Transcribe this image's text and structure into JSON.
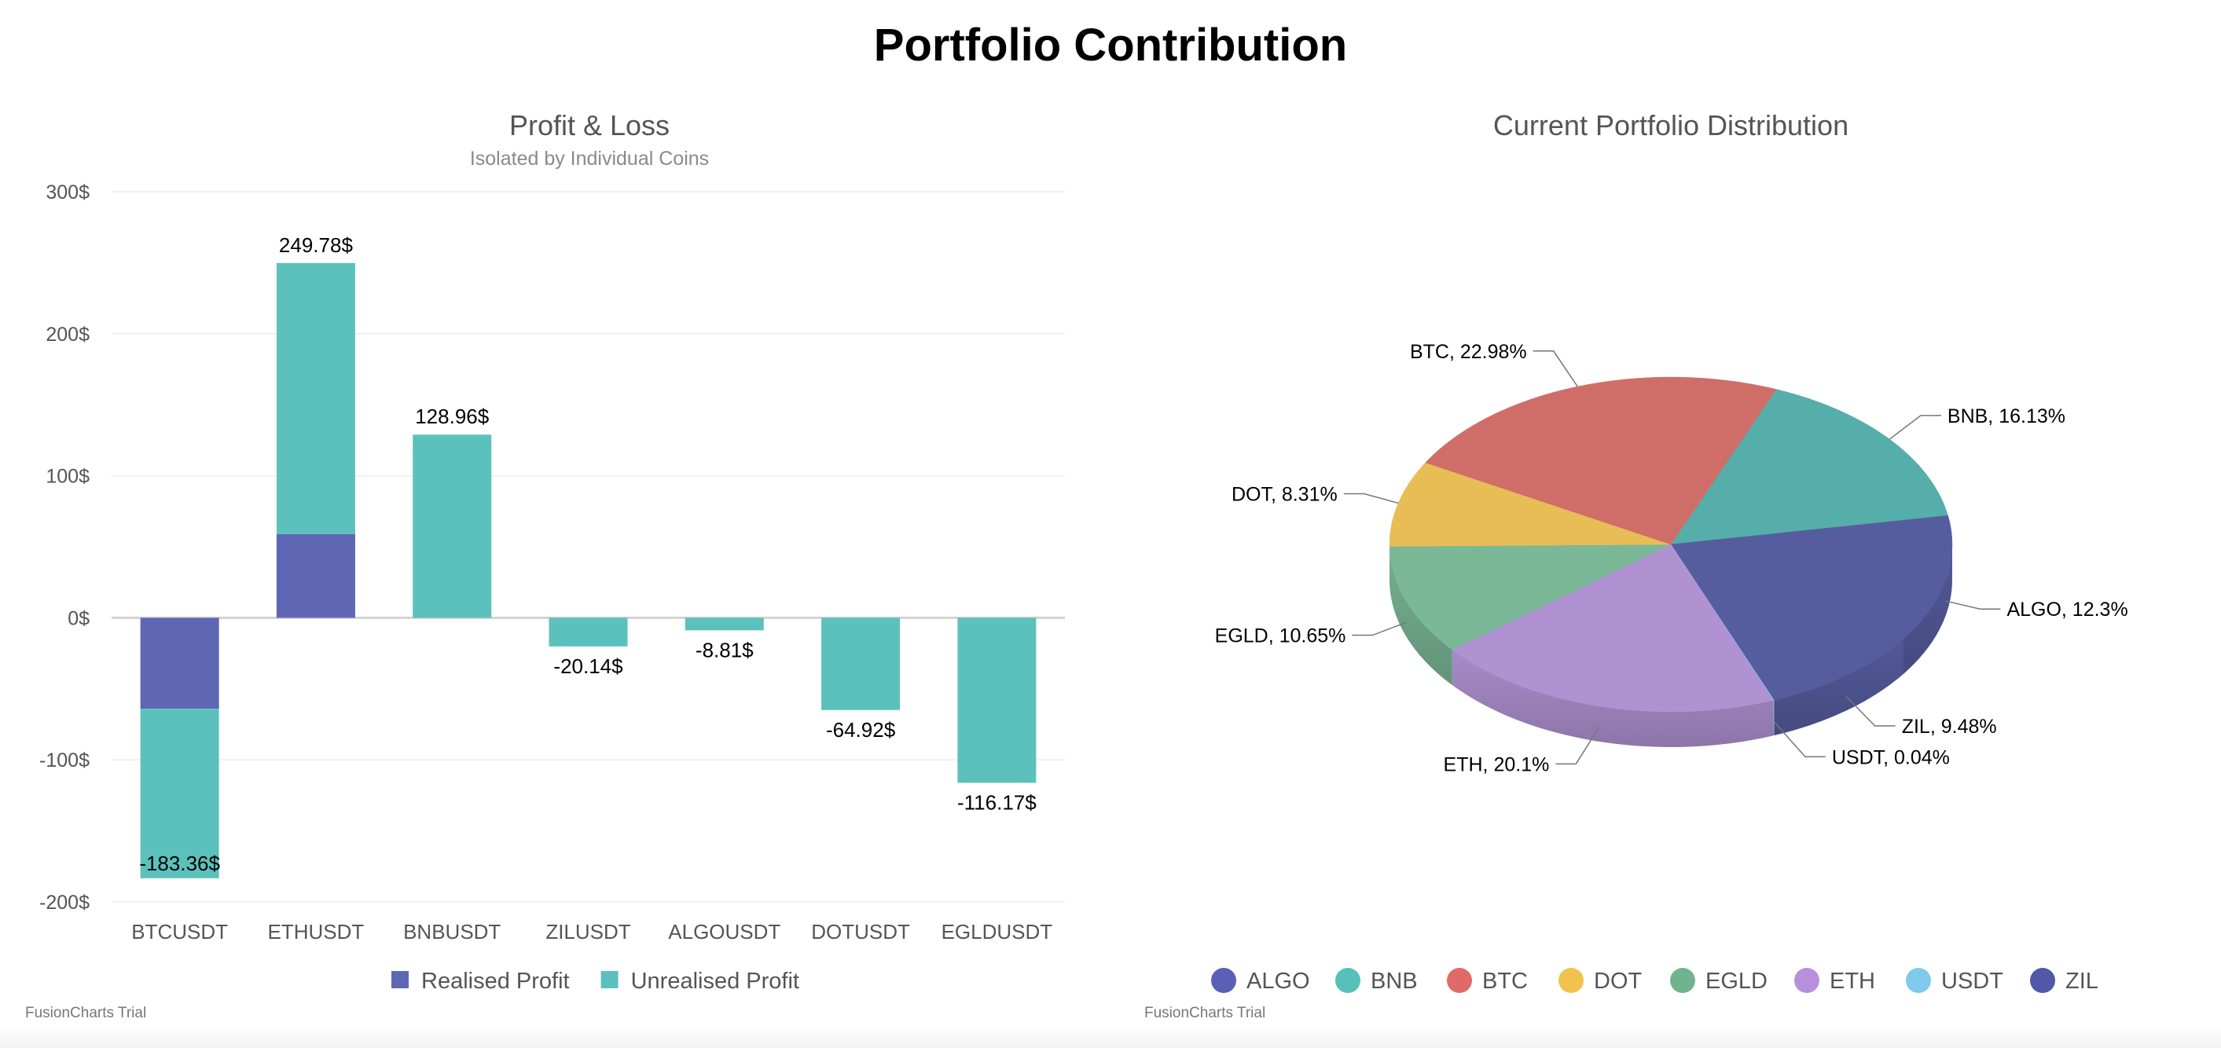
{
  "page": {
    "title": "Portfolio Contribution"
  },
  "chart_data": [
    {
      "type": "bar",
      "stacked": true,
      "title": "Profit & Loss",
      "subtitle": "Isolated by Individual Coins",
      "categories": [
        "BTCUSDT",
        "ETHUSDT",
        "BNBUSDT",
        "ZILUSDT",
        "ALGOUSDT",
        "DOTUSDT",
        "EGLDUSDT"
      ],
      "series": [
        {
          "name": "Realised Profit",
          "color": "#5f67b5",
          "values": [
            -64,
            59,
            0,
            0,
            0,
            0,
            0
          ]
        },
        {
          "name": "Unrealised Profit",
          "color": "#5cc1bc",
          "values": [
            -119.36,
            190.78,
            128.96,
            -20.14,
            -8.81,
            -64.92,
            -116.17
          ]
        }
      ],
      "totals_labels": [
        "-183.36$",
        "249.78$",
        "128.96$",
        "-20.14$",
        "-8.81$",
        "-64.92$",
        "-116.17$"
      ],
      "ylim": [
        -200,
        300
      ],
      "yticks": [
        300,
        200,
        100,
        0,
        -100,
        -200
      ],
      "ytick_labels": [
        "300$",
        "200$",
        "100$",
        "0$",
        "-100$",
        "-200$"
      ],
      "grid": true,
      "legend_position": "bottom",
      "credit": "FusionCharts Trial"
    },
    {
      "type": "pie",
      "title": "Current Portfolio Distribution",
      "slices": [
        {
          "name": "BNB",
          "value": 16.13,
          "label": "BNB, 16.13%",
          "color": "#55aeaa"
        },
        {
          "name": "ALGO",
          "value": 12.3,
          "label": "ALGO, 12.3%",
          "color": "#565d9f"
        },
        {
          "name": "ZIL",
          "value": 9.48,
          "label": "ZIL, 9.48%",
          "color": "#565d9f"
        },
        {
          "name": "USDT",
          "value": 0.04,
          "label": "USDT, 0.04%",
          "color": "#7ccce8"
        },
        {
          "name": "ETH",
          "value": 20.1,
          "label": "ETH, 20.1%",
          "color": "#b092d2"
        },
        {
          "name": "EGLD",
          "value": 10.65,
          "label": "EGLD, 10.65%",
          "color": "#7bb897"
        },
        {
          "name": "DOT",
          "value": 8.31,
          "label": "DOT, 8.31%",
          "color": "#e8bd55"
        },
        {
          "name": "BTC",
          "value": 22.98,
          "label": "BTC, 22.98%",
          "color": "#cf6e68"
        }
      ],
      "legend": [
        {
          "name": "ALGO",
          "color": "#5b5fb5"
        },
        {
          "name": "BNB",
          "color": "#56c0ba"
        },
        {
          "name": "BTC",
          "color": "#e06b66"
        },
        {
          "name": "DOT",
          "color": "#f2c24e"
        },
        {
          "name": "EGLD",
          "color": "#6fb48f"
        },
        {
          "name": "ETH",
          "color": "#b88fdc"
        },
        {
          "name": "USDT",
          "color": "#7fcaed"
        },
        {
          "name": "ZIL",
          "color": "#5257a8"
        }
      ],
      "legend_position": "bottom",
      "credit": "FusionCharts Trial"
    }
  ]
}
